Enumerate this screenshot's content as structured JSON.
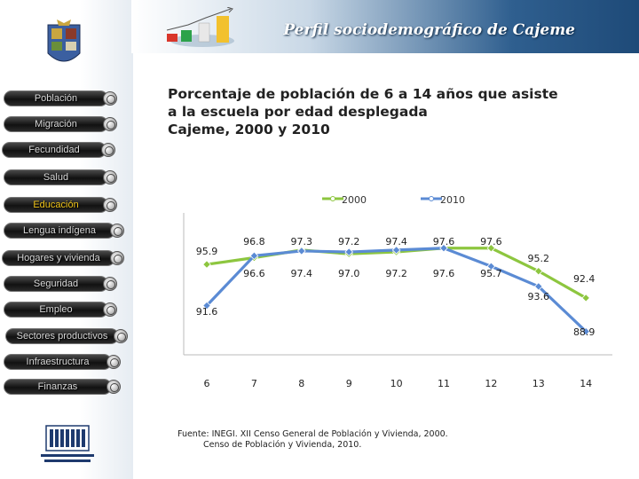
{
  "header": {
    "title": "Perfil sociodemográfico de Cajeme"
  },
  "colors": {
    "series_2000": "#8dc63f",
    "series_2010": "#5b8bd4",
    "header_dark": "#1e4a78",
    "nav_active": "#f0c419"
  },
  "sidebar": {
    "items": [
      {
        "label": "Población",
        "active": false
      },
      {
        "label": "Migración",
        "active": false
      },
      {
        "label": "Fecundidad",
        "active": false
      },
      {
        "label": "Salud",
        "active": false
      },
      {
        "label": "Educación",
        "active": true
      },
      {
        "label": "Lengua indígena",
        "active": false
      },
      {
        "label": "Hogares y vivienda",
        "active": false
      },
      {
        "label": "Seguridad",
        "active": false
      },
      {
        "label": "Empleo",
        "active": false
      },
      {
        "label": "Sectores productivos",
        "active": false
      },
      {
        "label": "Infraestructura",
        "active": false
      },
      {
        "label": "Finanzas",
        "active": false
      }
    ],
    "logo_top_icon": "municipal-coat-of-arms-icon",
    "logo_bottom_icon": "inegi-logo-icon"
  },
  "chart_title_lines": [
    "Porcentaje de población de 6 a 14 años que asiste",
    "a la escuela por edad desplegada",
    "Cajeme, 2000 y 2010"
  ],
  "chart_data": {
    "type": "line",
    "title": "Porcentaje de población de 6 a 14 años que asiste a la escuela por edad desplegada Cajeme, 2000 y 2010",
    "x": [
      "6",
      "7",
      "8",
      "9",
      "10",
      "11",
      "12",
      "13",
      "14"
    ],
    "series": [
      {
        "name": "2000",
        "values": [
          95.9,
          96.6,
          97.4,
          97.0,
          97.2,
          97.6,
          97.6,
          95.2,
          92.4
        ]
      },
      {
        "name": "2010",
        "values": [
          91.6,
          96.8,
          97.3,
          97.2,
          97.4,
          97.6,
          95.7,
          93.6,
          88.9
        ]
      }
    ],
    "ylim": [
      88.0,
      98.5
    ],
    "grid": false,
    "legend": "top-center",
    "y_axis_labels": false
  },
  "footnote": {
    "line1": "Fuente: INEGI. XII Censo General de Población y Vivienda, 2000.",
    "line2": "Censo de Población y Vivienda, 2010."
  }
}
